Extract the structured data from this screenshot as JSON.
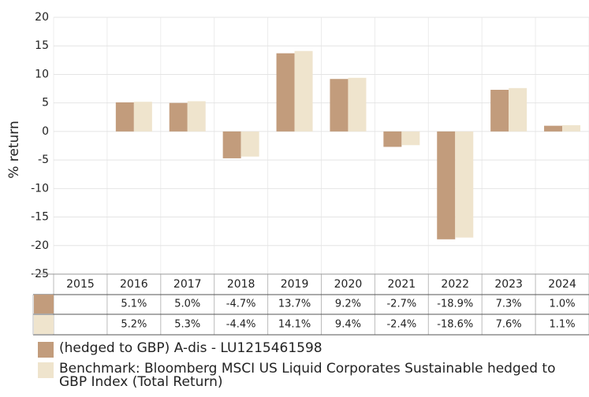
{
  "chart_data": {
    "type": "bar",
    "ylabel": "% return",
    "categories": [
      "2015",
      "2016",
      "2017",
      "2018",
      "2019",
      "2020",
      "2021",
      "2022",
      "2023",
      "2024"
    ],
    "series": [
      {
        "name": "(hedged to GBP) A-dis - LU1215461598",
        "color": "#c29c7c",
        "values": [
          null,
          5.1,
          5.0,
          -4.7,
          13.7,
          9.2,
          -2.7,
          -18.9,
          7.3,
          1.0
        ],
        "value_labels": [
          null,
          "5.1%",
          "5.0%",
          "-4.7%",
          "13.7%",
          "9.2%",
          "-2.7%",
          "-18.9%",
          "7.3%",
          "1.0%"
        ]
      },
      {
        "name": "Benchmark: Bloomberg MSCI US Liquid Corporates Sustainable hedged to GBP Index (Total Return)",
        "color": "#efe4cd",
        "values": [
          null,
          5.2,
          5.3,
          -4.4,
          14.1,
          9.4,
          -2.4,
          -18.6,
          7.6,
          1.1
        ],
        "value_labels": [
          null,
          "5.2%",
          "5.3%",
          "-4.4%",
          "14.1%",
          "9.4%",
          "-2.4%",
          "-18.6%",
          "7.6%",
          "1.1%"
        ]
      }
    ],
    "ylim": [
      -25,
      20
    ],
    "yticks": [
      -25,
      -20,
      -15,
      -10,
      -5,
      0,
      5,
      10,
      15,
      20
    ],
    "grid": true
  }
}
